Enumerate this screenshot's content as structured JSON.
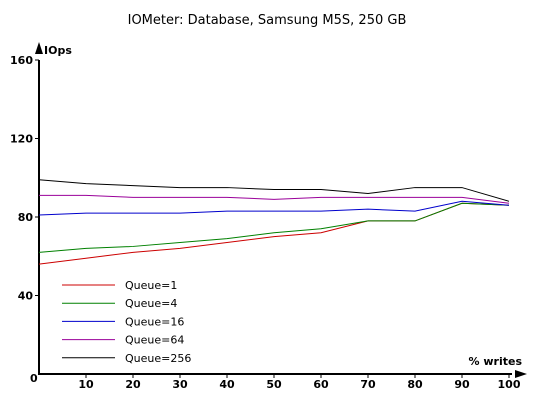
{
  "chart_data": {
    "type": "line",
    "title": "IOMeter: Database, Samsung M5S, 250 GB",
    "xlabel": "% writes",
    "ylabel": "IOps",
    "xlim": [
      0,
      100
    ],
    "ylim": [
      0,
      160
    ],
    "x": [
      0,
      10,
      20,
      30,
      40,
      50,
      60,
      70,
      80,
      90,
      100
    ],
    "x_ticks": [
      "0",
      "10",
      "20",
      "30",
      "40",
      "50",
      "60",
      "70",
      "80",
      "90",
      "100"
    ],
    "y_ticks": [
      "40",
      "80",
      "120",
      "160"
    ],
    "legend_position": "bottom-left",
    "grid": false,
    "series": [
      {
        "name": "Queue=1",
        "color": "#cc0000",
        "values": [
          56,
          59,
          62,
          64,
          67,
          70,
          72,
          78,
          78,
          87,
          86
        ]
      },
      {
        "name": "Queue=4",
        "color": "#008000",
        "values": [
          62,
          64,
          65,
          67,
          69,
          72,
          74,
          78,
          78,
          87,
          86
        ]
      },
      {
        "name": "Queue=16",
        "color": "#0000cc",
        "values": [
          81,
          82,
          82,
          82,
          83,
          83,
          83,
          84,
          83,
          88,
          86
        ]
      },
      {
        "name": "Queue=64",
        "color": "#990099",
        "values": [
          91,
          91,
          90,
          90,
          90,
          89,
          90,
          90,
          90,
          90,
          87
        ]
      },
      {
        "name": "Queue=256",
        "color": "#000000",
        "values": [
          99,
          97,
          96,
          95,
          95,
          94,
          94,
          92,
          95,
          95,
          88
        ]
      }
    ]
  }
}
